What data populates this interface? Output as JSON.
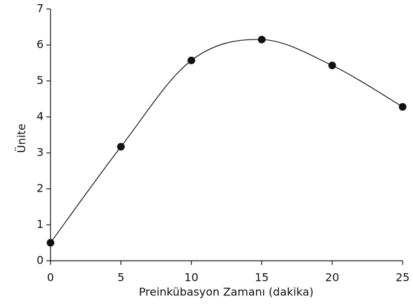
{
  "chart_data": {
    "type": "line",
    "x_label": "Preinkübasyon Zamanı (dakika)",
    "y_label": "Ünite",
    "x": [
      0,
      5,
      10,
      15,
      20,
      25
    ],
    "series": [
      {
        "values": [
          0.5,
          3.17,
          5.57,
          6.15,
          5.43,
          4.28
        ],
        "color": "#111111"
      }
    ],
    "xlim": [
      0,
      25
    ],
    "xticks": [
      0,
      5,
      10,
      15,
      20,
      25
    ],
    "ylim": [
      0,
      7
    ],
    "yticks": [
      0,
      1,
      2,
      3,
      4,
      5,
      6,
      7
    ],
    "smooth": true,
    "markers": true,
    "grid": false
  }
}
